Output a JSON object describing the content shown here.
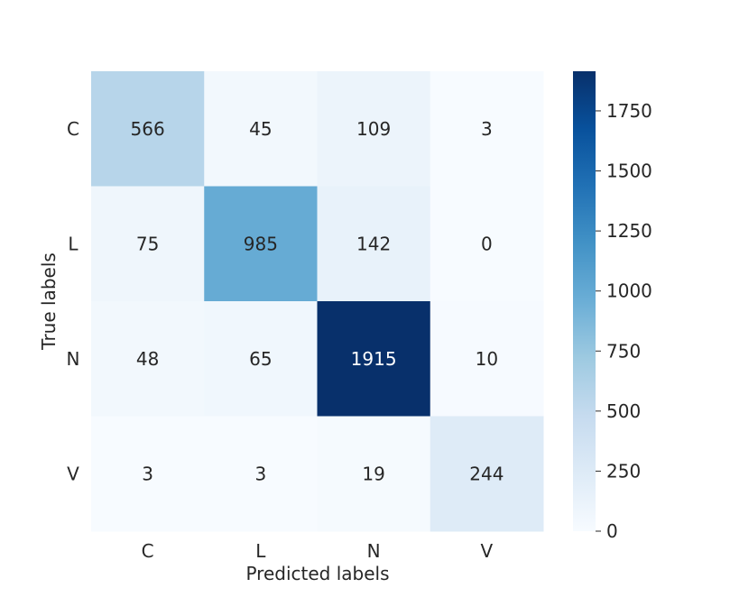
{
  "chart_data": {
    "type": "heatmap",
    "xlabel": "Predicted labels",
    "ylabel": "True labels",
    "x_categories": [
      "C",
      "L",
      "N",
      "V"
    ],
    "y_categories": [
      "C",
      "L",
      "N",
      "V"
    ],
    "values": [
      [
        566,
        45,
        109,
        3
      ],
      [
        75,
        985,
        142,
        0
      ],
      [
        48,
        65,
        1915,
        10
      ],
      [
        3,
        3,
        19,
        244
      ]
    ],
    "colormap": "Blues",
    "colorbar": {
      "min": 0,
      "max": 1915,
      "ticks": [
        0,
        250,
        500,
        750,
        1000,
        1250,
        1500,
        1750
      ],
      "tick_labels": [
        "0",
        "250",
        "500",
        "750",
        "1000",
        "1250",
        "1500",
        "1750"
      ]
    },
    "grid": false
  }
}
